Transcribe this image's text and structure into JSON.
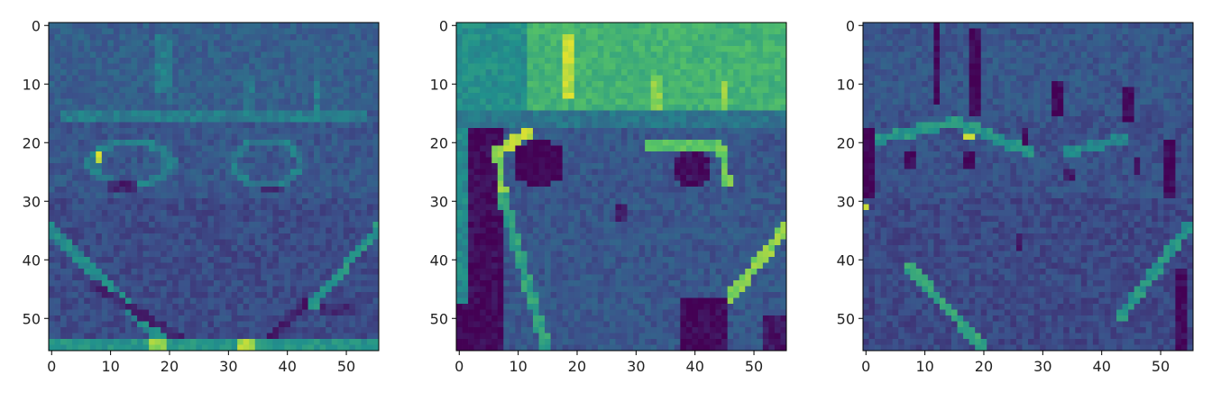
{
  "figure": {
    "background": "#ffffff",
    "colormap": "viridis",
    "colormap_stops": [
      "#440154",
      "#3b528b",
      "#21918c",
      "#5ec962",
      "#fde725"
    ]
  },
  "chart_data": [
    {
      "type": "heatmap",
      "title": "",
      "xlabel": "",
      "ylabel": "",
      "grid": false,
      "shape": [
        56,
        56
      ],
      "xlim": [
        -0.5,
        55.5
      ],
      "ylim": [
        55.5,
        -0.5
      ],
      "x_ticks": [
        0,
        10,
        20,
        30,
        40,
        50
      ],
      "y_ticks": [
        0,
        10,
        20,
        30,
        40,
        50
      ],
      "x_tick_labels": [
        "0",
        "10",
        "20",
        "30",
        "40",
        "50"
      ],
      "y_tick_labels": [
        "0",
        "10",
        "20",
        "30",
        "40",
        "50"
      ],
      "background_level": 0.3,
      "features": [
        {
          "kind": "rect",
          "x0": 0,
          "x1": 56,
          "y0": 0,
          "y1": 15,
          "v": 0.33
        },
        {
          "kind": "rect",
          "x0": 18,
          "x1": 20,
          "y0": 2,
          "y1": 12,
          "v": 0.45
        },
        {
          "kind": "rect",
          "x0": 20,
          "x1": 21,
          "y0": 3,
          "y1": 14,
          "v": 0.42
        },
        {
          "kind": "rect",
          "x0": 33,
          "x1": 35,
          "y0": 9,
          "y1": 15,
          "v": 0.42
        },
        {
          "kind": "rect",
          "x0": 45,
          "x1": 46,
          "y0": 10,
          "y1": 15,
          "v": 0.45
        },
        {
          "kind": "rect",
          "x0": 2,
          "x1": 54,
          "y0": 15,
          "y1": 17,
          "v": 0.45
        },
        {
          "kind": "ring",
          "cx": 14,
          "cy": 24,
          "rx": 7,
          "ry": 4,
          "v": 0.45
        },
        {
          "kind": "ring",
          "cx": 37,
          "cy": 24,
          "rx": 6,
          "ry": 4,
          "v": 0.45
        },
        {
          "kind": "rect",
          "x0": 8,
          "x1": 9,
          "y0": 22,
          "y1": 24,
          "v": 0.95
        },
        {
          "kind": "rect",
          "x0": 10,
          "x1": 15,
          "y0": 27,
          "y1": 29,
          "v": 0.12
        },
        {
          "kind": "rect",
          "x0": 36,
          "x1": 40,
          "y0": 28,
          "y1": 29,
          "v": 0.15
        },
        {
          "kind": "rect",
          "x0": 0,
          "x1": 56,
          "y0": 30,
          "y1": 56,
          "v": 0.26
        },
        {
          "kind": "line",
          "x0": 0,
          "y0": 35,
          "x1": 20,
          "y1": 55,
          "w": 1.2,
          "v": 0.5
        },
        {
          "kind": "line",
          "x0": 8,
          "y0": 45,
          "x1": 24,
          "y1": 55,
          "w": 1.0,
          "v": 0.15
        },
        {
          "kind": "line",
          "x0": 44,
          "y0": 48,
          "x1": 36,
          "y1": 55,
          "w": 1.0,
          "v": 0.12
        },
        {
          "kind": "line",
          "x0": 56,
          "y0": 35,
          "x1": 45,
          "y1": 48,
          "w": 1.0,
          "v": 0.55
        },
        {
          "kind": "rect",
          "x0": 46,
          "x1": 52,
          "y0": 48,
          "y1": 50,
          "v": 0.15
        },
        {
          "kind": "rect",
          "x0": 0,
          "x1": 56,
          "y0": 54,
          "y1": 56,
          "v": 0.55
        },
        {
          "kind": "rect",
          "x0": 17,
          "x1": 20,
          "y0": 54,
          "y1": 56,
          "v": 0.85
        },
        {
          "kind": "rect",
          "x0": 32,
          "x1": 35,
          "y0": 54,
          "y1": 56,
          "v": 0.9
        }
      ]
    },
    {
      "type": "heatmap",
      "title": "",
      "xlabel": "",
      "ylabel": "",
      "grid": false,
      "shape": [
        56,
        56
      ],
      "xlim": [
        -0.5,
        55.5
      ],
      "ylim": [
        55.5,
        -0.5
      ],
      "x_ticks": [
        0,
        10,
        20,
        30,
        40,
        50
      ],
      "y_ticks": [
        0,
        10,
        20,
        30,
        40,
        50
      ],
      "x_tick_labels": [
        "0",
        "10",
        "20",
        "30",
        "40",
        "50"
      ],
      "y_tick_labels": [
        "0",
        "10",
        "20",
        "30",
        "40",
        "50"
      ],
      "background_level": 0.45,
      "features": [
        {
          "kind": "rect",
          "x0": 0,
          "x1": 56,
          "y0": 0,
          "y1": 15,
          "v": 0.52
        },
        {
          "kind": "rect",
          "x0": 12,
          "x1": 56,
          "y0": 0,
          "y1": 15,
          "v": 0.68
        },
        {
          "kind": "rect",
          "x0": 18,
          "x1": 20,
          "y0": 2,
          "y1": 13,
          "v": 0.93
        },
        {
          "kind": "rect",
          "x0": 33,
          "x1": 35,
          "y0": 9,
          "y1": 15,
          "v": 0.85
        },
        {
          "kind": "rect",
          "x0": 45,
          "x1": 46,
          "y0": 10,
          "y1": 17,
          "v": 0.85
        },
        {
          "kind": "rect",
          "x0": 0,
          "x1": 56,
          "y0": 15,
          "y1": 56,
          "v": 0.3
        },
        {
          "kind": "rect",
          "x0": 0,
          "x1": 56,
          "y0": 15,
          "y1": 18,
          "v": 0.42
        },
        {
          "kind": "rect",
          "x0": 0,
          "x1": 8,
          "y0": 18,
          "y1": 56,
          "v": 0.06
        },
        {
          "kind": "rect",
          "x0": 0,
          "x1": 2,
          "y0": 18,
          "y1": 56,
          "v": 0.5
        },
        {
          "kind": "line",
          "x0": 7,
          "y0": 22,
          "x1": 12,
          "y1": 19,
          "w": 1.3,
          "v": 0.92
        },
        {
          "kind": "line",
          "x0": 7,
          "y0": 22,
          "x1": 8,
          "y1": 30,
          "w": 1.0,
          "v": 0.85
        },
        {
          "kind": "line",
          "x0": 33,
          "y0": 21,
          "x1": 44,
          "y1": 21,
          "w": 1.0,
          "v": 0.75
        },
        {
          "kind": "line",
          "x0": 45,
          "y0": 22,
          "x1": 46,
          "y1": 27,
          "w": 1.0,
          "v": 0.8
        },
        {
          "kind": "ellipse",
          "cx": 14,
          "cy": 24,
          "rx": 4.5,
          "ry": 4,
          "v": 0.02
        },
        {
          "kind": "ellipse",
          "cx": 40,
          "cy": 25,
          "rx": 3.5,
          "ry": 3.5,
          "v": 0.08
        },
        {
          "kind": "rect",
          "x0": 27,
          "x1": 29,
          "y0": 31,
          "y1": 34,
          "v": 0.12
        },
        {
          "kind": "line",
          "x0": 8,
          "y0": 30,
          "x1": 15,
          "y1": 55,
          "w": 1.2,
          "v": 0.6
        },
        {
          "kind": "line",
          "x0": 56,
          "y0": 35,
          "x1": 44,
          "y1": 50,
          "w": 1.3,
          "v": 0.85
        },
        {
          "kind": "rect",
          "x0": 0,
          "x1": 4,
          "y0": 48,
          "y1": 56,
          "v": 0.04
        },
        {
          "kind": "rect",
          "x0": 38,
          "x1": 46,
          "y0": 47,
          "y1": 56,
          "v": 0.05
        },
        {
          "kind": "rect",
          "x0": 52,
          "x1": 56,
          "y0": 50,
          "y1": 56,
          "v": 0.1
        }
      ]
    },
    {
      "type": "heatmap",
      "title": "",
      "xlabel": "",
      "ylabel": "",
      "grid": false,
      "shape": [
        56,
        56
      ],
      "xlim": [
        -0.5,
        55.5
      ],
      "ylim": [
        55.5,
        -0.5
      ],
      "x_ticks": [
        0,
        10,
        20,
        30,
        40,
        50
      ],
      "y_ticks": [
        0,
        10,
        20,
        30,
        40,
        50
      ],
      "x_tick_labels": [
        "0",
        "10",
        "20",
        "30",
        "40",
        "50"
      ],
      "y_tick_labels": [
        "0",
        "10",
        "20",
        "30",
        "40",
        "50"
      ],
      "background_level": 0.28,
      "features": [
        {
          "kind": "rect",
          "x0": 0,
          "x1": 56,
          "y0": 0,
          "y1": 15,
          "v": 0.3
        },
        {
          "kind": "rect",
          "x0": 12,
          "x1": 13,
          "y0": 0,
          "y1": 14,
          "v": 0.05
        },
        {
          "kind": "rect",
          "x0": 18,
          "x1": 20,
          "y0": 1,
          "y1": 16,
          "v": 0.04
        },
        {
          "kind": "rect",
          "x0": 32,
          "x1": 34,
          "y0": 10,
          "y1": 16,
          "v": 0.05
        },
        {
          "kind": "rect",
          "x0": 44,
          "x1": 46,
          "y0": 11,
          "y1": 17,
          "v": 0.05
        },
        {
          "kind": "line",
          "x0": 2,
          "y0": 20,
          "x1": 16,
          "y1": 17,
          "w": 1.2,
          "v": 0.55
        },
        {
          "kind": "line",
          "x0": 16,
          "y0": 17,
          "x1": 28,
          "y1": 22,
          "w": 1.2,
          "v": 0.55
        },
        {
          "kind": "line",
          "x0": 35,
          "y0": 22,
          "x1": 44,
          "y1": 20,
          "w": 1.2,
          "v": 0.5
        },
        {
          "kind": "rect",
          "x0": 17,
          "x1": 19,
          "y0": 19,
          "y1": 20,
          "v": 0.95
        },
        {
          "kind": "rect",
          "x0": 7,
          "x1": 9,
          "y0": 22,
          "y1": 25,
          "v": 0.06
        },
        {
          "kind": "rect",
          "x0": 17,
          "x1": 19,
          "y0": 22,
          "y1": 25,
          "v": 0.06
        },
        {
          "kind": "rect",
          "x0": 27,
          "x1": 28,
          "y0": 18,
          "y1": 21,
          "v": 0.1
        },
        {
          "kind": "rect",
          "x0": 34,
          "x1": 36,
          "y0": 25,
          "y1": 27,
          "v": 0.1
        },
        {
          "kind": "rect",
          "x0": 46,
          "x1": 47,
          "y0": 23,
          "y1": 26,
          "v": 0.1
        },
        {
          "kind": "rect",
          "x0": 0,
          "x1": 2,
          "y0": 18,
          "y1": 30,
          "v": 0.04
        },
        {
          "kind": "rect",
          "x0": 51,
          "x1": 53,
          "y0": 20,
          "y1": 30,
          "v": 0.05
        },
        {
          "kind": "rect",
          "x0": 3,
          "x1": 5,
          "y0": 36,
          "y1": 56,
          "v": 0.05
        },
        {
          "kind": "rect",
          "x0": 0,
          "x1": 56,
          "y0": 30,
          "y1": 56,
          "v": 0.25
        },
        {
          "kind": "rect",
          "x0": 0,
          "x1": 1,
          "y0": 31,
          "y1": 32,
          "v": 0.9
        },
        {
          "kind": "line",
          "x0": 8,
          "y0": 42,
          "x1": 20,
          "y1": 55,
          "w": 1.2,
          "v": 0.62
        },
        {
          "kind": "line",
          "x0": 55,
          "y0": 35,
          "x1": 44,
          "y1": 50,
          "w": 1.2,
          "v": 0.55
        },
        {
          "kind": "rect",
          "x0": 26,
          "x1": 27,
          "y0": 36,
          "y1": 39,
          "v": 0.1
        },
        {
          "kind": "rect",
          "x0": 53,
          "x1": 55,
          "y0": 42,
          "y1": 56,
          "v": 0.06
        }
      ]
    }
  ]
}
